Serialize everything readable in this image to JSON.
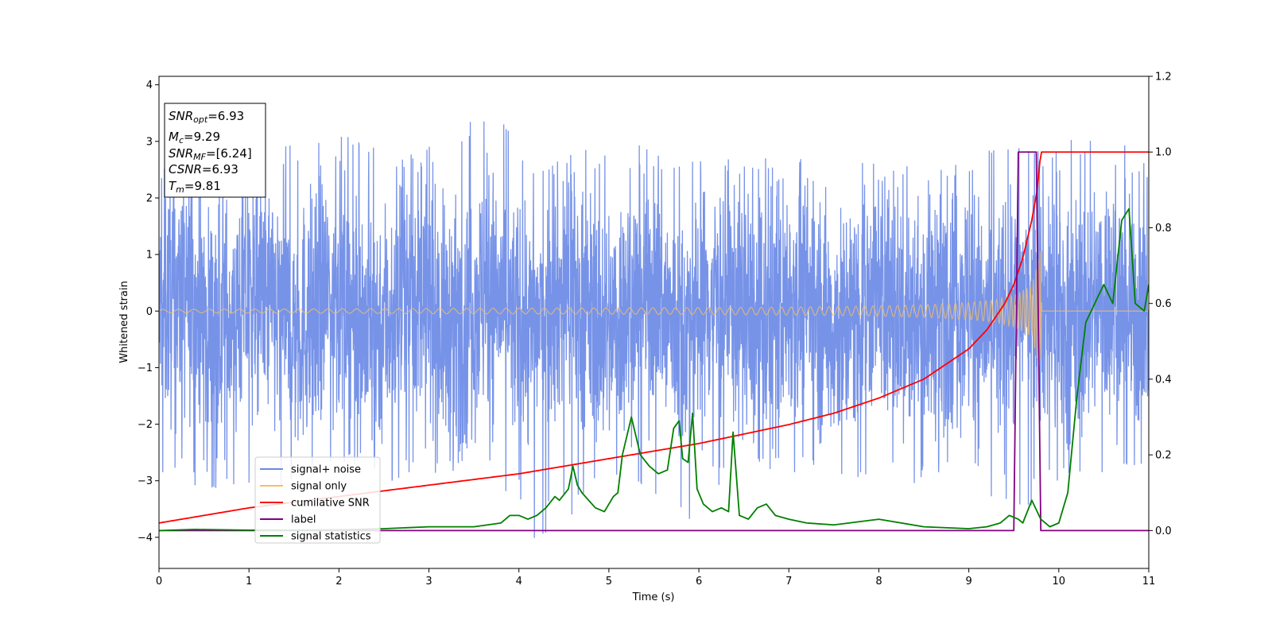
{
  "chart_data": {
    "type": "line",
    "xlabel": "Time (s)",
    "ylabel": "Whitened strain",
    "xlim": [
      0,
      11
    ],
    "ylim": [
      -4.55,
      4.15
    ],
    "y2lim": [
      -0.1,
      1.2
    ],
    "xticks": [
      "0",
      "1",
      "2",
      "3",
      "4",
      "5",
      "6",
      "7",
      "8",
      "9",
      "10",
      "11"
    ],
    "yticks": [
      "−4",
      "−3",
      "−2",
      "−1",
      "0",
      "1",
      "2",
      "3",
      "4"
    ],
    "y2ticks": [
      "0.0",
      "0.2",
      "0.4",
      "0.6",
      "0.8",
      "1.0",
      "1.2"
    ],
    "grid": false,
    "legend_position": "lower-left",
    "info_box": {
      "lines": [
        "SNRopt=6.93",
        "Mc=9.29",
        "SNRMF=[6.24]",
        "CSNR=6.93",
        "Tm=9.81"
      ]
    },
    "series": [
      {
        "name": "signal+ noise",
        "axis": "left",
        "color": "#6b8ae6",
        "envelope_x": [
          0,
          1,
          2,
          3,
          3.68,
          4,
          4.12,
          5,
          5.95,
          6,
          7,
          8,
          9,
          9.5,
          9.8,
          10,
          10.3,
          11
        ],
        "envelope_upper": [
          2.7,
          2.8,
          3.1,
          2.9,
          3.75,
          2.9,
          2.5,
          3.0,
          2.8,
          2.7,
          2.7,
          2.6,
          2.7,
          3.0,
          2.9,
          2.8,
          3.3,
          2.7
        ],
        "envelope_lower": [
          -3.0,
          -3.2,
          -3.0,
          -3.0,
          -3.1,
          -3.3,
          -4.15,
          -3.2,
          -4.0,
          -3.2,
          -3.0,
          -3.0,
          -3.1,
          -3.5,
          -3.45,
          -3.0,
          -3.3,
          -3.0
        ]
      },
      {
        "name": "signal only",
        "axis": "left",
        "color": "#f5bf66",
        "envelope_x": [
          0,
          2,
          4,
          6,
          7,
          8,
          8.5,
          9,
          9.3,
          9.5,
          9.7,
          9.8,
          9.81,
          11
        ],
        "envelope_amplitude": [
          0.03,
          0.04,
          0.05,
          0.06,
          0.07,
          0.09,
          0.11,
          0.15,
          0.2,
          0.28,
          0.45,
          1.1,
          0,
          0
        ]
      },
      {
        "name": "cumilative SNR",
        "axis": "right",
        "color": "#ff0000",
        "x": [
          0,
          1,
          2,
          3,
          4,
          5,
          6,
          7,
          7.5,
          8,
          8.5,
          9,
          9.2,
          9.4,
          9.5,
          9.6,
          9.7,
          9.76,
          9.8,
          11
        ],
        "y": [
          0.02,
          0.06,
          0.09,
          0.12,
          0.15,
          0.19,
          0.23,
          0.28,
          0.31,
          0.35,
          0.4,
          0.48,
          0.53,
          0.6,
          0.65,
          0.72,
          0.82,
          0.9,
          1.0,
          1.0
        ]
      },
      {
        "name": "label",
        "axis": "right",
        "color": "#800080",
        "x": [
          0,
          9.5,
          9.55,
          9.75,
          9.8,
          11
        ],
        "y": [
          0,
          0,
          1.0,
          1.0,
          0,
          0
        ]
      },
      {
        "name": "signal statistics",
        "axis": "right",
        "color": "#008000",
        "x": [
          0,
          0.4,
          1,
          2,
          2.5,
          3,
          3.5,
          3.8,
          3.9,
          4,
          4.1,
          4.2,
          4.3,
          4.4,
          4.45,
          4.55,
          4.6,
          4.65,
          4.7,
          4.85,
          4.95,
          5.05,
          5.1,
          5.15,
          5.25,
          5.35,
          5.45,
          5.55,
          5.65,
          5.72,
          5.78,
          5.82,
          5.88,
          5.93,
          5.98,
          6.05,
          6.15,
          6.25,
          6.33,
          6.38,
          6.45,
          6.55,
          6.65,
          6.75,
          6.85,
          7,
          7.2,
          7.5,
          8,
          8.5,
          9,
          9.2,
          9.35,
          9.45,
          9.55,
          9.6,
          9.7,
          9.8,
          9.9,
          10,
          10.1,
          10.2,
          10.3,
          10.4,
          10.5,
          10.6,
          10.7,
          10.78,
          10.85,
          10.95,
          11
        ],
        "y": [
          0,
          0.003,
          0.001,
          0.002,
          0.005,
          0.01,
          0.01,
          0.02,
          0.04,
          0.04,
          0.03,
          0.04,
          0.06,
          0.09,
          0.08,
          0.11,
          0.17,
          0.12,
          0.1,
          0.06,
          0.05,
          0.09,
          0.1,
          0.2,
          0.3,
          0.2,
          0.17,
          0.15,
          0.16,
          0.27,
          0.29,
          0.19,
          0.18,
          0.31,
          0.11,
          0.07,
          0.05,
          0.06,
          0.05,
          0.26,
          0.04,
          0.03,
          0.06,
          0.07,
          0.04,
          0.03,
          0.02,
          0.015,
          0.03,
          0.01,
          0.005,
          0.01,
          0.02,
          0.04,
          0.03,
          0.02,
          0.08,
          0.03,
          0.01,
          0.02,
          0.1,
          0.35,
          0.55,
          0.6,
          0.65,
          0.6,
          0.82,
          0.85,
          0.6,
          0.58,
          0.65
        ]
      }
    ]
  }
}
